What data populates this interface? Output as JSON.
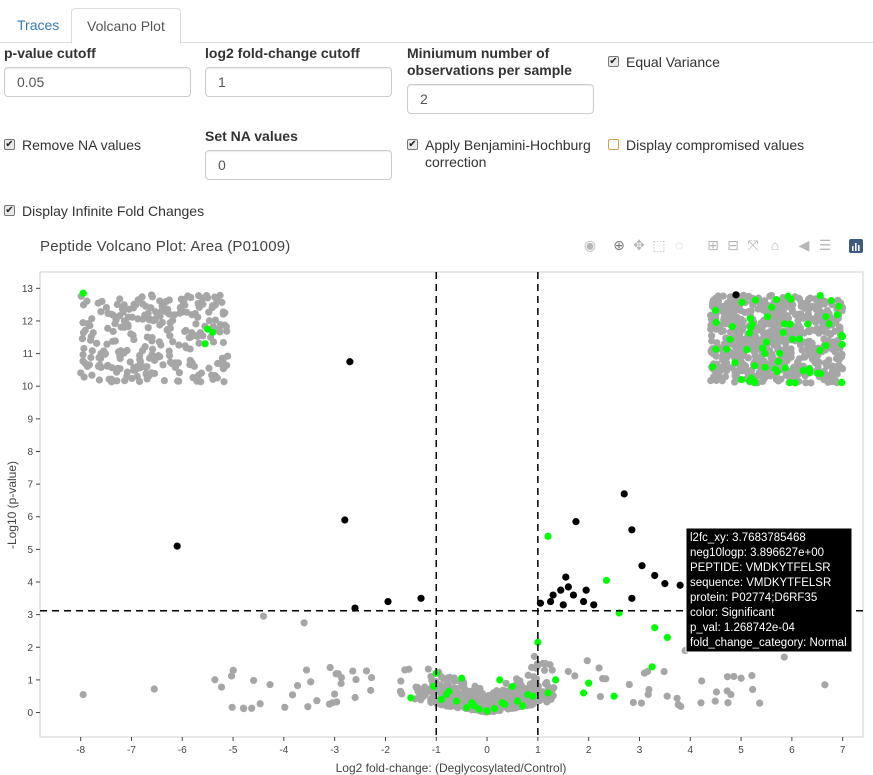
{
  "tabs": [
    {
      "label": "Traces"
    },
    {
      "label": "Volcano Plot"
    }
  ],
  "controls": {
    "pvalue_cutoff": {
      "label": "p-value cutoff",
      "value": "0.05"
    },
    "log2fc_cutoff": {
      "label": "log2 fold-change cutoff",
      "value": "1"
    },
    "min_obs": {
      "label_line1": "Miniumum number of",
      "label_line2": "observations per sample",
      "value": "2"
    },
    "equal_variance": {
      "label": "Equal Variance",
      "checked": true
    },
    "remove_na": {
      "label": "Remove NA values",
      "checked": true
    },
    "set_na": {
      "label": "Set NA values",
      "value": "0"
    },
    "bh_correction": {
      "label_line1": "Apply Benjamini-Hochburg",
      "label_line2": "correction",
      "checked": true
    },
    "display_compromised": {
      "label": "Display compromised values",
      "checked": false
    },
    "display_infinite": {
      "label": "Display Infinite Fold Changes",
      "checked": true
    }
  },
  "modebar": {
    "icons": [
      "camera-icon",
      "zoom-icon",
      "pan-icon",
      "box-select-icon",
      "lasso-icon",
      "zoom-in-icon",
      "zoom-out-icon",
      "autoscale-icon",
      "home-icon",
      "spike-lines-icon",
      "compare-hover-icon",
      "plotly-logo-icon"
    ]
  },
  "colors": {
    "normal": "#a6a6a6",
    "significant": "#000000",
    "highlight": "#00ff00"
  },
  "chart_data": {
    "type": "scatter",
    "title": "Peptide Volcano Plot: Area (P01009)",
    "xlabel": "Log2 fold-change: (Deglycosylated/Control)",
    "ylabel": "-Log10 (p-value)",
    "xlim": [
      -8.8,
      7.4
    ],
    "ylim": [
      -0.75,
      13.5
    ],
    "xticks": [
      "-8",
      "-7",
      "-6",
      "-5",
      "-4",
      "-3",
      "-2",
      "-1",
      "0",
      "1",
      "2",
      "3",
      "4",
      "5",
      "6",
      "7"
    ],
    "yticks": [
      "0",
      "1",
      "2",
      "3",
      "4",
      "5",
      "6",
      "7",
      "8",
      "9",
      "10",
      "11",
      "12",
      "13"
    ],
    "thresholds": {
      "x": [
        -1,
        1
      ],
      "y": 3.12
    },
    "grid": false,
    "series": [
      {
        "color": "significant",
        "x": [
          -2.7,
          -2.8,
          -6.1,
          -2.6,
          -1.95,
          -1.3,
          2.7,
          2.85,
          1.75,
          3.05,
          3.3,
          3.8,
          1.95,
          1.55,
          1.45,
          1.6,
          1.7,
          1.9,
          2.1,
          2.85,
          1.3,
          1.25,
          1.05,
          1.5,
          4.9,
          3.5
        ],
        "y": [
          10.75,
          5.9,
          5.1,
          3.2,
          3.4,
          3.5,
          6.7,
          5.6,
          5.85,
          4.5,
          4.2,
          3.9,
          3.75,
          4.15,
          3.75,
          3.85,
          3.6,
          3.4,
          3.3,
          3.5,
          3.6,
          3.4,
          3.35,
          3.3,
          12.8,
          3.95
        ]
      },
      {
        "color": "highlight",
        "x": [
          -7.95,
          -5.5,
          -5.4,
          -5.55,
          1.2,
          2.35,
          2.6,
          3.25,
          3.55,
          3.3,
          1.0,
          -1.0,
          -0.5,
          0.25,
          2.0,
          0.5,
          -0.75,
          0.0,
          -0.15,
          0.15,
          -0.3,
          0.3,
          -0.6,
          0.6,
          -0.8,
          0.8,
          -1.05,
          1.2,
          0.7,
          -0.4,
          0.35,
          -0.25,
          1.35,
          -0.9,
          0.9,
          2.5,
          -1.5,
          1.9
        ],
        "y": [
          12.85,
          11.75,
          11.65,
          11.3,
          5.4,
          4.05,
          3.05,
          1.4,
          2.3,
          2.6,
          2.15,
          1.2,
          1.05,
          1.0,
          0.9,
          0.8,
          0.65,
          0.05,
          0.1,
          0.12,
          0.3,
          0.3,
          0.35,
          0.35,
          0.55,
          0.55,
          0.8,
          0.6,
          0.2,
          0.15,
          0.25,
          0.2,
          1.0,
          0.4,
          0.5,
          0.5,
          0.45,
          0.6
        ]
      }
    ],
    "tooltip": {
      "lines": [
        "l2fc_xy:  3.7683785468",
        "neg10logp: 3.896627e+00",
        "PEPTIDE: VMDKYTFELSR",
        "sequence: VMDKYTFELSR",
        "protein: P02774;D6RF35",
        "color: Significant",
        "p_val: 1.268742e-04",
        "fold_change_category: Normal"
      ]
    }
  }
}
